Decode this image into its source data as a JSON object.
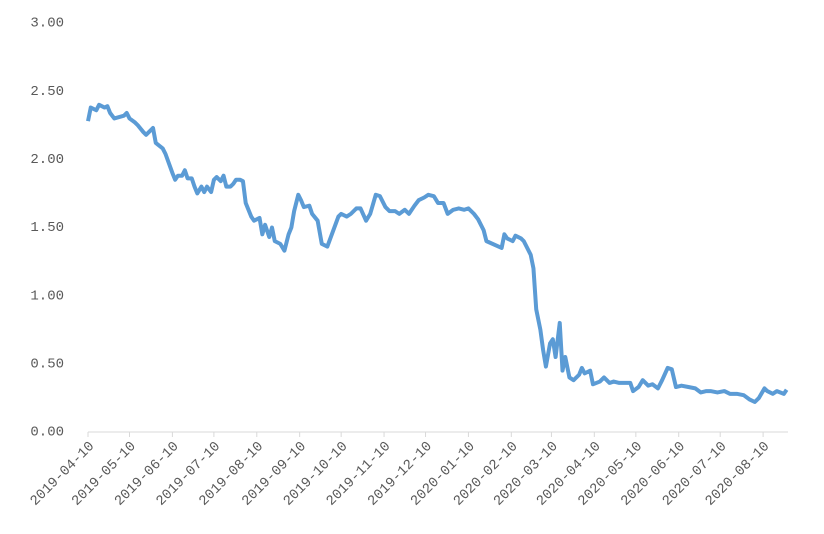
{
  "chart_data": {
    "type": "line",
    "x": [
      "2019-04-10",
      "2019-04-12",
      "2019-04-16",
      "2019-04-18",
      "2019-04-22",
      "2019-04-24",
      "2019-04-26",
      "2019-04-29",
      "2019-05-06",
      "2019-05-08",
      "2019-05-10",
      "2019-05-14",
      "2019-05-16",
      "2019-05-20",
      "2019-05-22",
      "2019-05-24",
      "2019-05-27",
      "2019-05-29",
      "2019-06-03",
      "2019-06-05",
      "2019-06-10",
      "2019-06-12",
      "2019-06-14",
      "2019-06-17",
      "2019-06-19",
      "2019-06-21",
      "2019-06-24",
      "2019-06-26",
      "2019-06-28",
      "2019-07-01",
      "2019-07-03",
      "2019-07-05",
      "2019-07-08",
      "2019-07-10",
      "2019-07-12",
      "2019-07-15",
      "2019-07-17",
      "2019-07-19",
      "2019-07-22",
      "2019-07-24",
      "2019-07-26",
      "2019-07-29",
      "2019-07-31",
      "2019-08-02",
      "2019-08-06",
      "2019-08-08",
      "2019-08-12",
      "2019-08-14",
      "2019-08-16",
      "2019-08-19",
      "2019-08-21",
      "2019-08-23",
      "2019-08-27",
      "2019-08-30",
      "2019-09-02",
      "2019-09-04",
      "2019-09-06",
      "2019-09-09",
      "2019-09-11",
      "2019-09-13",
      "2019-09-17",
      "2019-09-19",
      "2019-09-23",
      "2019-09-26",
      "2019-09-30",
      "2019-10-08",
      "2019-10-10",
      "2019-10-14",
      "2019-10-17",
      "2019-10-21",
      "2019-10-24",
      "2019-10-28",
      "2019-10-31",
      "2019-11-04",
      "2019-11-07",
      "2019-11-11",
      "2019-11-14",
      "2019-11-18",
      "2019-11-21",
      "2019-11-25",
      "2019-11-28",
      "2019-12-02",
      "2019-12-05",
      "2019-12-09",
      "2019-12-12",
      "2019-12-16",
      "2019-12-19",
      "2019-12-23",
      "2019-12-26",
      "2019-12-30",
      "2020-01-03",
      "2020-01-07",
      "2020-01-10",
      "2020-01-14",
      "2020-01-17",
      "2020-01-21",
      "2020-01-23",
      "2020-02-03",
      "2020-02-05",
      "2020-02-07",
      "2020-02-11",
      "2020-02-13",
      "2020-02-17",
      "2020-02-19",
      "2020-02-24",
      "2020-02-26",
      "2020-02-28",
      "2020-03-02",
      "2020-03-04",
      "2020-03-06",
      "2020-03-09",
      "2020-03-11",
      "2020-03-13",
      "2020-03-16",
      "2020-03-18",
      "2020-03-20",
      "2020-03-23",
      "2020-03-26",
      "2020-03-30",
      "2020-04-01",
      "2020-04-03",
      "2020-04-07",
      "2020-04-09",
      "2020-04-14",
      "2020-04-17",
      "2020-04-21",
      "2020-04-24",
      "2020-04-28",
      "2020-05-06",
      "2020-05-08",
      "2020-05-12",
      "2020-05-15",
      "2020-05-19",
      "2020-05-22",
      "2020-05-26",
      "2020-05-29",
      "2020-06-02",
      "2020-06-05",
      "2020-06-08",
      "2020-06-12",
      "2020-06-17",
      "2020-06-22",
      "2020-06-26",
      "2020-06-30",
      "2020-07-03",
      "2020-07-08",
      "2020-07-13",
      "2020-07-17",
      "2020-07-22",
      "2020-07-27",
      "2020-07-31",
      "2020-08-04",
      "2020-08-07",
      "2020-08-11",
      "2020-08-13",
      "2020-08-17",
      "2020-08-20",
      "2020-08-25",
      "2020-08-27"
    ],
    "values": [
      2.28,
      2.38,
      2.36,
      2.4,
      2.38,
      2.39,
      2.34,
      2.3,
      2.32,
      2.34,
      2.3,
      2.27,
      2.25,
      2.2,
      2.18,
      2.2,
      2.23,
      2.12,
      2.08,
      2.04,
      1.9,
      1.85,
      1.88,
      1.88,
      1.92,
      1.86,
      1.86,
      1.8,
      1.75,
      1.8,
      1.76,
      1.8,
      1.76,
      1.85,
      1.87,
      1.84,
      1.88,
      1.8,
      1.8,
      1.82,
      1.85,
      1.85,
      1.84,
      1.68,
      1.58,
      1.55,
      1.57,
      1.45,
      1.52,
      1.43,
      1.5,
      1.4,
      1.38,
      1.33,
      1.45,
      1.5,
      1.62,
      1.74,
      1.7,
      1.65,
      1.66,
      1.6,
      1.55,
      1.38,
      1.36,
      1.58,
      1.6,
      1.58,
      1.6,
      1.64,
      1.64,
      1.55,
      1.6,
      1.74,
      1.73,
      1.65,
      1.62,
      1.62,
      1.6,
      1.63,
      1.6,
      1.66,
      1.7,
      1.72,
      1.74,
      1.73,
      1.68,
      1.68,
      1.6,
      1.63,
      1.64,
      1.63,
      1.64,
      1.6,
      1.56,
      1.48,
      1.4,
      1.35,
      1.45,
      1.42,
      1.4,
      1.44,
      1.42,
      1.4,
      1.3,
      1.2,
      0.9,
      0.75,
      0.6,
      0.48,
      0.65,
      0.68,
      0.55,
      0.8,
      0.45,
      0.55,
      0.4,
      0.38,
      0.42,
      0.47,
      0.43,
      0.45,
      0.35,
      0.37,
      0.4,
      0.36,
      0.37,
      0.36,
      0.36,
      0.3,
      0.33,
      0.38,
      0.34,
      0.35,
      0.32,
      0.38,
      0.47,
      0.46,
      0.33,
      0.34,
      0.33,
      0.32,
      0.29,
      0.3,
      0.3,
      0.29,
      0.3,
      0.28,
      0.28,
      0.27,
      0.24,
      0.22,
      0.25,
      0.32,
      0.3,
      0.28,
      0.3,
      0.28,
      0.31
    ],
    "color": "#5b9bd5",
    "xlim": [
      "2019-04-10",
      "2020-08-28"
    ],
    "xticks": [
      "2019-04-10",
      "2019-05-10",
      "2019-06-10",
      "2019-07-10",
      "2019-08-10",
      "2019-09-10",
      "2019-10-10",
      "2019-11-10",
      "2019-12-10",
      "2020-01-10",
      "2020-02-10",
      "2020-03-10",
      "2020-04-10",
      "2020-05-10",
      "2020-06-10",
      "2020-07-10",
      "2020-08-10"
    ],
    "ylim": [
      0,
      3
    ],
    "yticks": [
      {
        "value": 0,
        "label": "0.00"
      },
      {
        "value": 0.5,
        "label": "0.50"
      },
      {
        "value": 1,
        "label": "1.00"
      },
      {
        "value": 1.5,
        "label": "1.50"
      },
      {
        "value": 2,
        "label": "2.00"
      },
      {
        "value": 2.5,
        "label": "2.50"
      },
      {
        "value": 3,
        "label": "3.00"
      }
    ],
    "grid": false
  }
}
